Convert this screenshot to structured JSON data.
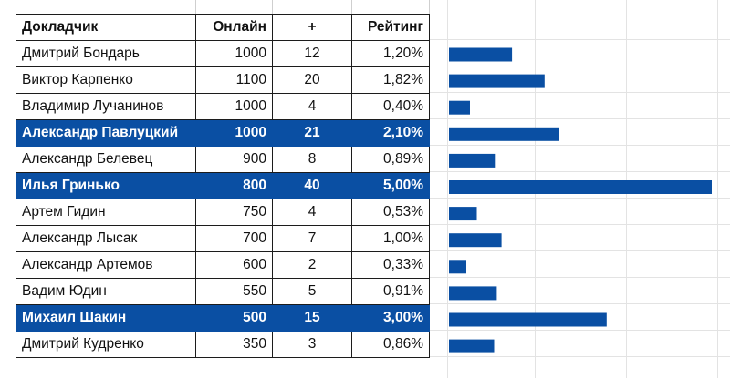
{
  "table": {
    "headers": [
      "Докладчик",
      "Онлайн",
      "+",
      "Рейтинг"
    ],
    "rows": [
      {
        "name": "Дмитрий Бондарь",
        "online": "1000",
        "plus": "12",
        "rating": "1,20%",
        "highlight": false
      },
      {
        "name": "Виктор Карпенко",
        "online": "1100",
        "plus": "20",
        "rating": "1,82%",
        "highlight": false
      },
      {
        "name": "Владимир Лучанинов",
        "online": "1000",
        "plus": "4",
        "rating": "0,40%",
        "highlight": false
      },
      {
        "name": "Александр Павлуцкий",
        "online": "1000",
        "plus": "21",
        "rating": "2,10%",
        "highlight": true
      },
      {
        "name": "Александр Белевец",
        "online": "900",
        "plus": "8",
        "rating": "0,89%",
        "highlight": false
      },
      {
        "name": "Илья Гринько",
        "online": "800",
        "plus": "40",
        "rating": "5,00%",
        "highlight": true
      },
      {
        "name": "Артем Гидин",
        "online": "750",
        "plus": "4",
        "rating": "0,53%",
        "highlight": false
      },
      {
        "name": "Александр Лысак",
        "online": "700",
        "plus": "7",
        "rating": "1,00%",
        "highlight": false
      },
      {
        "name": "Александр Артемов",
        "online": "600",
        "plus": "2",
        "rating": "0,33%",
        "highlight": false
      },
      {
        "name": "Вадим Юдин",
        "online": "550",
        "plus": "5",
        "rating": "0,91%",
        "highlight": false
      },
      {
        "name": "Михаил Шакин",
        "online": "500",
        "plus": "15",
        "rating": "3,00%",
        "highlight": true
      },
      {
        "name": "Дмитрий Кудренко",
        "online": "350",
        "plus": "3",
        "rating": "0,86%",
        "highlight": false
      }
    ]
  },
  "colors": {
    "highlight_row": "#0a4fa3",
    "bar": "#0a4fa3"
  },
  "chart_data": {
    "type": "bar",
    "orientation": "horizontal",
    "categories": [
      "Дмитрий Бондарь",
      "Виктор Карпенко",
      "Владимир Лучанинов",
      "Александр Павлуцкий",
      "Александр Белевец",
      "Илья Гринько",
      "Артем Гидин",
      "Александр Лысак",
      "Александр Артемов",
      "Вадим Юдин",
      "Михаил Шакин",
      "Дмитрий Кудренко"
    ],
    "values": [
      1.2,
      1.82,
      0.4,
      2.1,
      0.89,
      5.0,
      0.53,
      1.0,
      0.33,
      0.91,
      3.0,
      0.86
    ],
    "xlim": [
      0,
      5.0
    ],
    "unit": "%",
    "grid": false,
    "axis_labels_shown": false
  }
}
